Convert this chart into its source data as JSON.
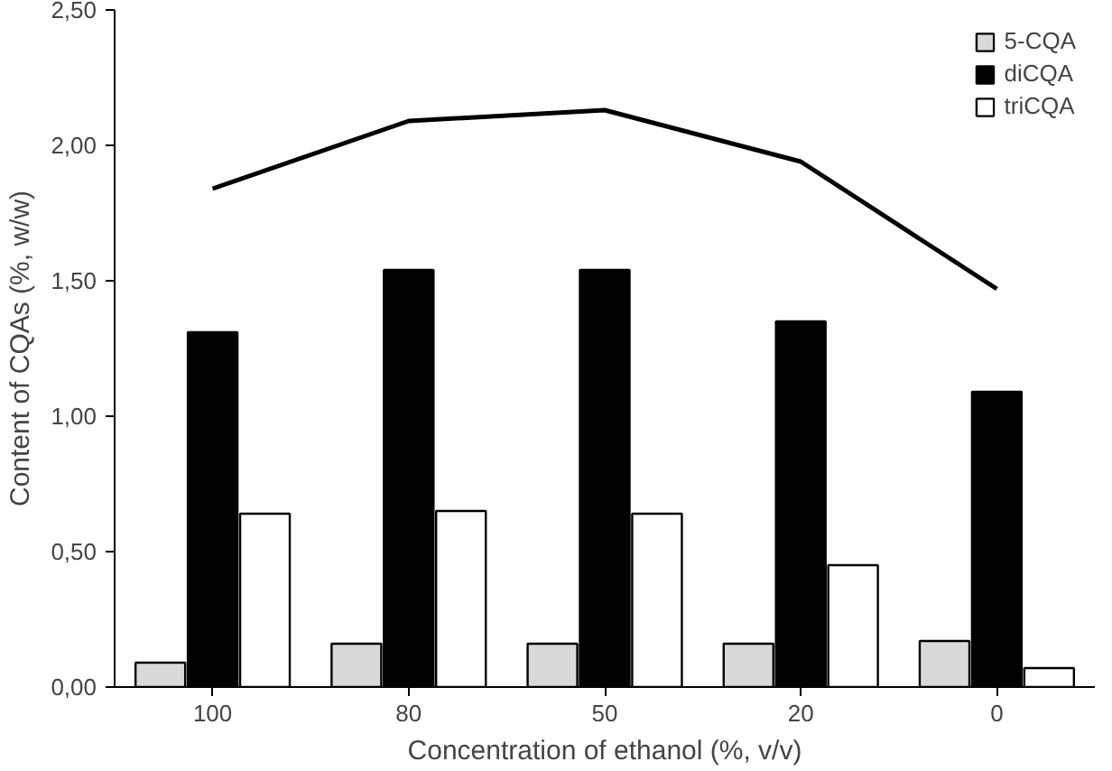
{
  "chart_data": {
    "type": "bar",
    "xlabel": "Concentration of ethanol (%, v/v)",
    "ylabel": "Content of CQAs (%, w/w)",
    "categories": [
      "100",
      "80",
      "50",
      "20",
      "0"
    ],
    "series": [
      {
        "name": "5-CQA",
        "color": "#d9d9d9",
        "values": [
          0.09,
          0.16,
          0.16,
          0.16,
          0.17
        ]
      },
      {
        "name": "diCQA",
        "color": "#000000",
        "values": [
          1.31,
          1.54,
          1.54,
          1.35,
          1.09
        ]
      },
      {
        "name": "triCQA",
        "color": "#ffffff",
        "values": [
          0.64,
          0.65,
          0.64,
          0.45,
          0.07
        ]
      },
      {
        "type": "line",
        "color": "#000000",
        "values": [
          1.84,
          2.09,
          2.13,
          1.94,
          1.47
        ]
      }
    ],
    "ylim": [
      0,
      2.5
    ],
    "yticks": [
      {
        "value": 0,
        "label": "0,00"
      },
      {
        "value": 0.5,
        "label": "0,50"
      },
      {
        "value": 1,
        "label": "1,00"
      },
      {
        "value": 1.5,
        "label": "1,50"
      },
      {
        "value": 2,
        "label": "2,00"
      },
      {
        "value": 2.5,
        "label": "2,50"
      }
    ],
    "grid": false,
    "legend": "top right"
  }
}
